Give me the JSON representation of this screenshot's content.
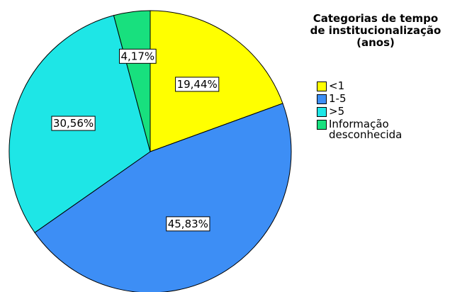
{
  "chart_data": {
    "type": "pie",
    "legend_title": "Categorias de tempo de institucionalização (anos)",
    "categories": [
      "<1",
      "1-5",
      ">5",
      "Informação desconhecida"
    ],
    "values": [
      19.44,
      45.83,
      30.56,
      4.17
    ],
    "value_labels": [
      "19,44%",
      "45,83%",
      "30,56%",
      "4,17%"
    ],
    "colors": [
      "#ffff00",
      "#3d8ef5",
      "#1ee6e6",
      "#18e07e"
    ],
    "legend": "right"
  }
}
